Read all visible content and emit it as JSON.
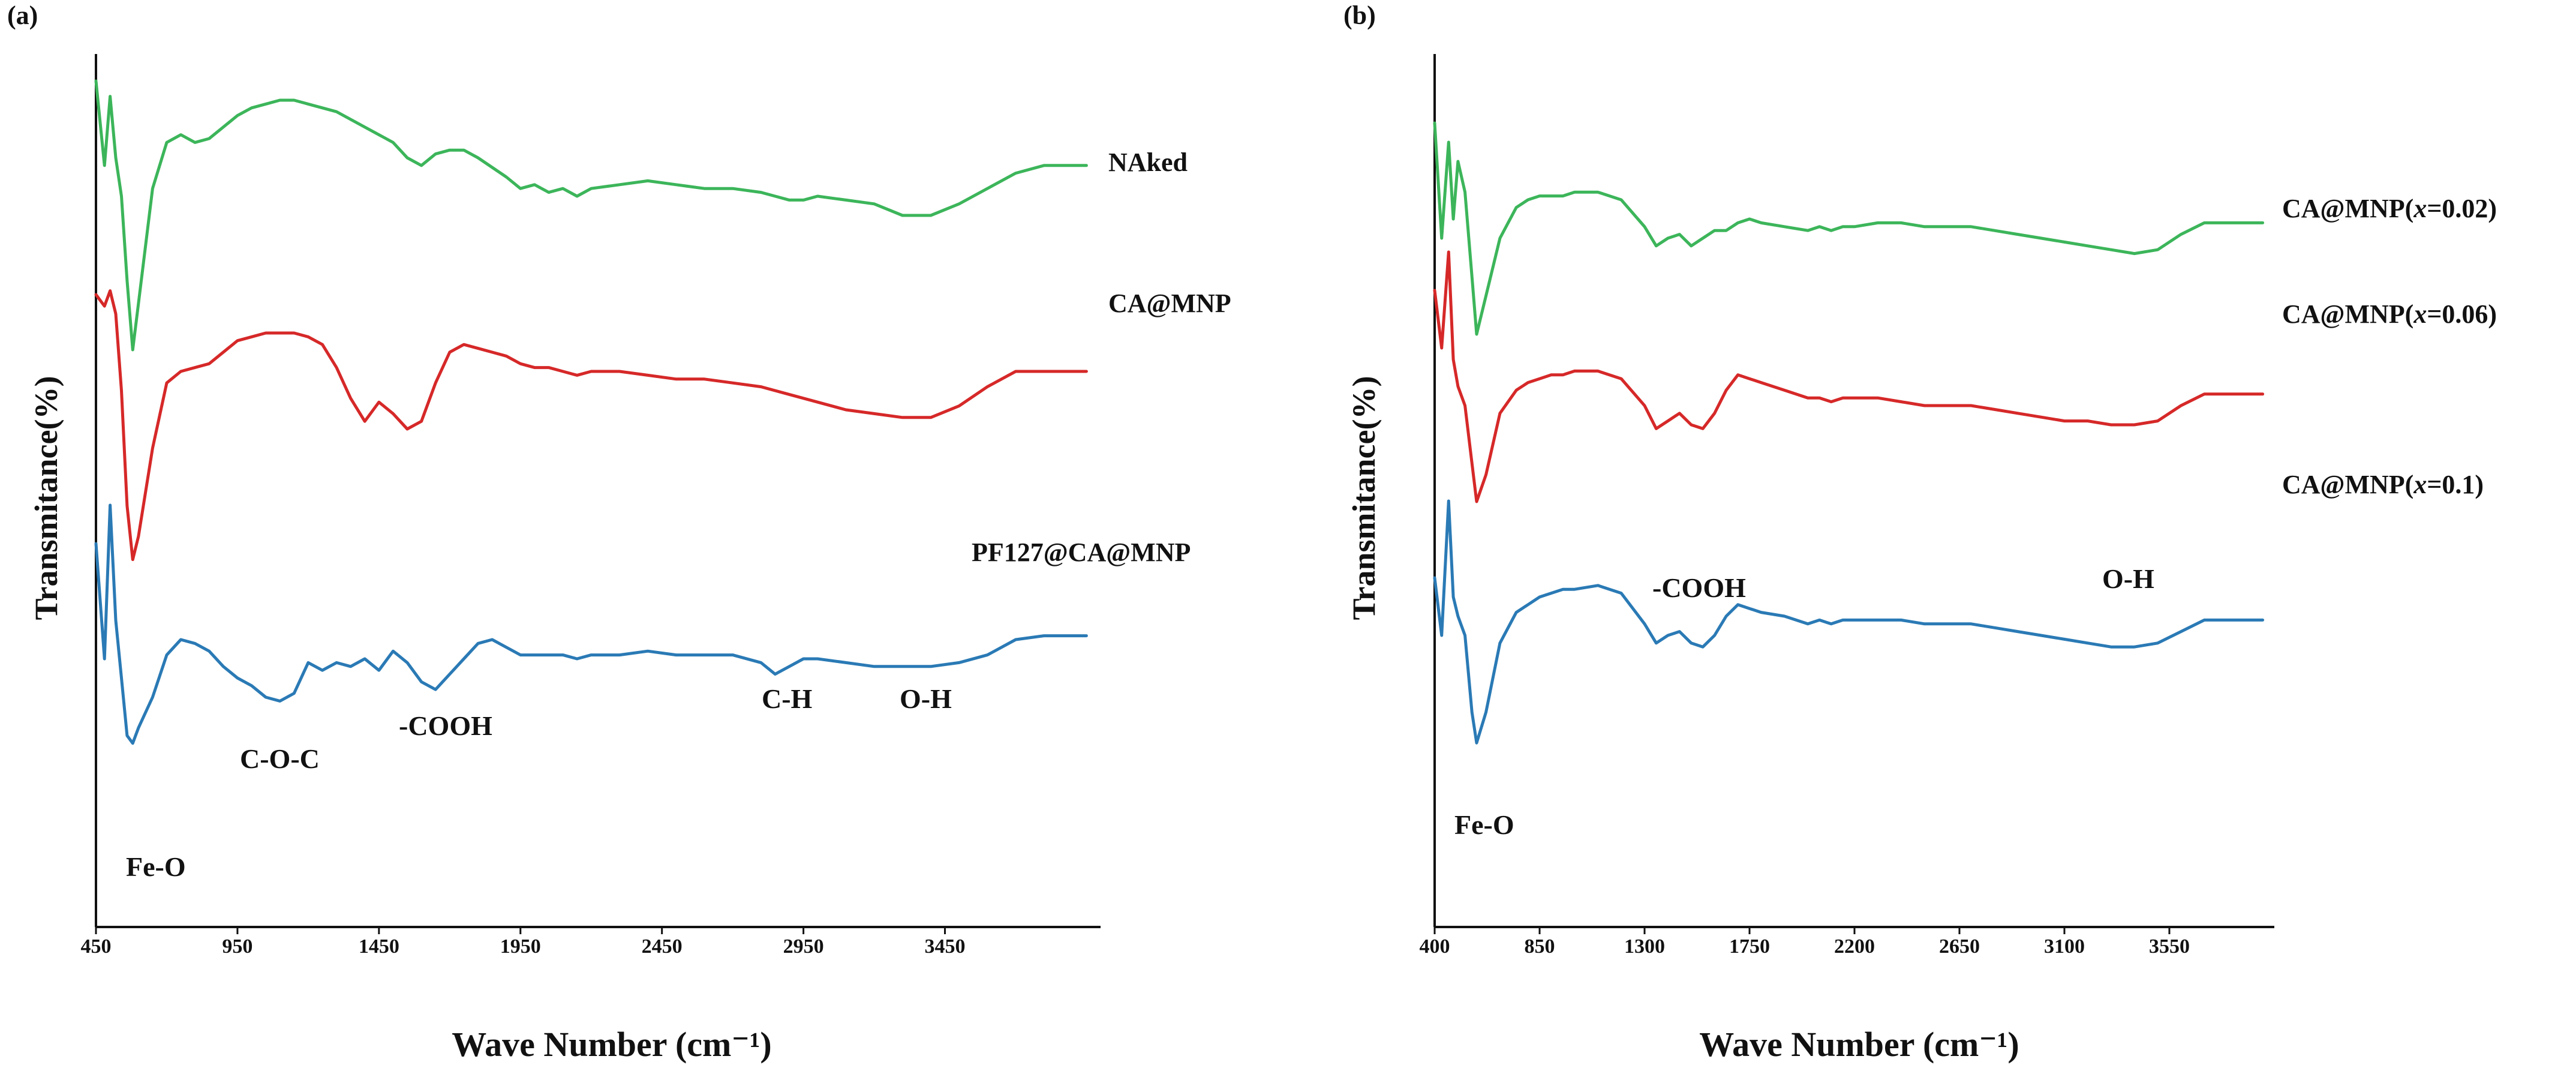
{
  "chart_data": [
    {
      "panel_label": "(a)",
      "type": "line",
      "xlabel": "Wave Number (cm⁻¹)",
      "ylabel": "Transmitance(%)",
      "xlim": [
        450,
        4000
      ],
      "ylim": [
        0,
        100
      ],
      "xticks": [
        450,
        950,
        1450,
        1950,
        2450,
        2950,
        3450
      ],
      "grid": false,
      "legend": "inline labels at right end of each curve",
      "series": [
        {
          "name": "NAked",
          "color": "#3cb55a",
          "x": [
            450,
            480,
            500,
            520,
            540,
            560,
            580,
            600,
            650,
            700,
            750,
            800,
            850,
            900,
            950,
            1000,
            1050,
            1100,
            1150,
            1200,
            1300,
            1400,
            1500,
            1550,
            1600,
            1650,
            1700,
            1750,
            1800,
            1900,
            1950,
            2000,
            2050,
            2100,
            2150,
            2200,
            2300,
            2400,
            2500,
            2600,
            2700,
            2800,
            2850,
            2900,
            2950,
            3000,
            3100,
            3200,
            3300,
            3400,
            3500,
            3600,
            3700,
            3800,
            3950
          ],
          "y": [
            100,
            78,
            96,
            80,
            70,
            48,
            30,
            42,
            72,
            84,
            86,
            84,
            85,
            88,
            91,
            93,
            94,
            95,
            95,
            94,
            92,
            88,
            84,
            80,
            78,
            81,
            82,
            82,
            80,
            75,
            72,
            73,
            71,
            72,
            70,
            72,
            73,
            74,
            73,
            72,
            72,
            71,
            70,
            69,
            69,
            70,
            69,
            68,
            65,
            65,
            68,
            72,
            76,
            78,
            78
          ]
        },
        {
          "name": "CA@MNP",
          "color": "#d62828",
          "x": [
            450,
            480,
            500,
            520,
            540,
            560,
            580,
            600,
            650,
            700,
            750,
            800,
            850,
            900,
            950,
            1000,
            1050,
            1100,
            1150,
            1200,
            1250,
            1300,
            1350,
            1400,
            1450,
            1500,
            1550,
            1600,
            1650,
            1700,
            1750,
            1800,
            1850,
            1900,
            1950,
            2000,
            2050,
            2100,
            2150,
            2200,
            2300,
            2400,
            2500,
            2600,
            2700,
            2800,
            2900,
            3000,
            3100,
            3200,
            3300,
            3400,
            3500,
            3600,
            3700,
            3800,
            3950
          ],
          "y": [
            85,
            82,
            86,
            80,
            60,
            30,
            16,
            22,
            45,
            62,
            65,
            66,
            67,
            70,
            73,
            74,
            75,
            75,
            75,
            74,
            72,
            66,
            58,
            52,
            57,
            54,
            50,
            52,
            62,
            70,
            72,
            71,
            70,
            69,
            67,
            66,
            66,
            65,
            64,
            65,
            65,
            64,
            63,
            63,
            62,
            61,
            59,
            57,
            55,
            54,
            53,
            53,
            56,
            61,
            65,
            65,
            65
          ]
        },
        {
          "name": "PF127@CA@MNP",
          "color": "#2a7ab5",
          "x": [
            450,
            480,
            500,
            520,
            540,
            560,
            580,
            600,
            650,
            700,
            750,
            800,
            850,
            900,
            950,
            1000,
            1050,
            1100,
            1150,
            1200,
            1250,
            1300,
            1350,
            1400,
            1450,
            1500,
            1550,
            1600,
            1650,
            1700,
            1750,
            1800,
            1850,
            1900,
            1950,
            2000,
            2050,
            2100,
            2150,
            2200,
            2300,
            2400,
            2500,
            2600,
            2700,
            2800,
            2850,
            2900,
            2950,
            3000,
            3100,
            3200,
            3300,
            3400,
            3500,
            3600,
            3700,
            3800,
            3950
          ],
          "y": [
            60,
            30,
            70,
            40,
            25,
            10,
            8,
            12,
            20,
            31,
            35,
            34,
            32,
            28,
            25,
            23,
            20,
            19,
            21,
            29,
            27,
            29,
            28,
            30,
            27,
            32,
            29,
            24,
            22,
            26,
            30,
            34,
            35,
            33,
            31,
            31,
            31,
            31,
            30,
            31,
            31,
            32,
            31,
            31,
            31,
            29,
            26,
            28,
            30,
            30,
            29,
            28,
            28,
            28,
            29,
            31,
            35,
            36,
            36
          ]
        }
      ],
      "annotations": [
        "Fe-O",
        "C-O-C",
        "-COOH",
        "C-H",
        "O-H"
      ]
    },
    {
      "panel_label": "(b)",
      "type": "line",
      "xlabel": "Wave Number (cm⁻¹)",
      "ylabel": "Transmitance(%)",
      "xlim": [
        400,
        4000
      ],
      "ylim": [
        0,
        100
      ],
      "xticks": [
        400,
        850,
        1300,
        1750,
        2200,
        2650,
        3100,
        3550
      ],
      "grid": false,
      "legend": "inline labels at right end of each curve",
      "series": [
        {
          "name": "CA@MNP(x=0.02)",
          "label_prefix": "CA@MNP(",
          "label_italic": "x",
          "label_suffix": "=0.02)",
          "color": "#3cb55a",
          "x": [
            400,
            430,
            460,
            480,
            500,
            530,
            560,
            580,
            620,
            680,
            750,
            800,
            850,
            900,
            950,
            1000,
            1100,
            1200,
            1300,
            1350,
            1400,
            1450,
            1500,
            1550,
            1600,
            1650,
            1700,
            1750,
            1800,
            1900,
            2000,
            2050,
            2100,
            2150,
            2200,
            2300,
            2400,
            2500,
            2600,
            2700,
            2800,
            2900,
            3000,
            3100,
            3200,
            3300,
            3400,
            3500,
            3600,
            3700,
            3800,
            3950
          ],
          "y": [
            100,
            70,
            95,
            75,
            90,
            82,
            60,
            45,
            55,
            70,
            78,
            80,
            81,
            81,
            81,
            82,
            82,
            80,
            73,
            68,
            70,
            71,
            68,
            70,
            72,
            72,
            74,
            75,
            74,
            73,
            72,
            73,
            72,
            73,
            73,
            74,
            74,
            73,
            73,
            73,
            72,
            71,
            70,
            69,
            68,
            67,
            66,
            67,
            71,
            74,
            74,
            74
          ]
        },
        {
          "name": "CA@MNP(x=0.06)",
          "label_prefix": "CA@MNP(",
          "label_italic": "x",
          "label_suffix": "=0.06)",
          "color": "#d62828",
          "x": [
            400,
            430,
            460,
            480,
            500,
            530,
            560,
            580,
            620,
            680,
            750,
            800,
            850,
            900,
            950,
            1000,
            1100,
            1200,
            1300,
            1350,
            1400,
            1450,
            1500,
            1550,
            1600,
            1650,
            1700,
            1750,
            1800,
            1900,
            2000,
            2050,
            2100,
            2150,
            2200,
            2300,
            2400,
            2500,
            2600,
            2700,
            2800,
            2900,
            3000,
            3100,
            3200,
            3300,
            3400,
            3500,
            3600,
            3700,
            3800,
            3950
          ],
          "y": [
            90,
            75,
            100,
            72,
            65,
            60,
            45,
            35,
            42,
            58,
            64,
            66,
            67,
            68,
            68,
            69,
            69,
            67,
            60,
            54,
            56,
            58,
            55,
            54,
            58,
            64,
            68,
            67,
            66,
            64,
            62,
            62,
            61,
            62,
            62,
            62,
            61,
            60,
            60,
            60,
            59,
            58,
            57,
            56,
            56,
            55,
            55,
            56,
            60,
            63,
            63,
            63
          ]
        },
        {
          "name": "CA@MNP(x=0.1)",
          "label_prefix": "CA@MNP(",
          "label_italic": "x",
          "label_suffix": "=0.1)",
          "color": "#2a7ab5",
          "x": [
            400,
            430,
            460,
            480,
            500,
            530,
            560,
            580,
            620,
            680,
            750,
            800,
            850,
            900,
            950,
            1000,
            1100,
            1200,
            1300,
            1350,
            1400,
            1450,
            1500,
            1550,
            1600,
            1650,
            1700,
            1750,
            1800,
            1900,
            2000,
            2050,
            2100,
            2150,
            2200,
            2300,
            2400,
            2500,
            2600,
            2700,
            2800,
            2900,
            3000,
            3100,
            3200,
            3300,
            3400,
            3500,
            3600,
            3700,
            3800,
            3950
          ],
          "y": [
            55,
            40,
            75,
            50,
            45,
            40,
            20,
            12,
            20,
            38,
            46,
            48,
            50,
            51,
            52,
            52,
            53,
            51,
            43,
            38,
            40,
            41,
            38,
            37,
            40,
            45,
            48,
            47,
            46,
            45,
            43,
            44,
            43,
            44,
            44,
            44,
            44,
            43,
            43,
            43,
            42,
            41,
            40,
            39,
            38,
            37,
            37,
            38,
            41,
            44,
            44,
            44
          ]
        }
      ],
      "annotations": [
        "Fe-O",
        "-COOH",
        "O-H"
      ]
    }
  ]
}
